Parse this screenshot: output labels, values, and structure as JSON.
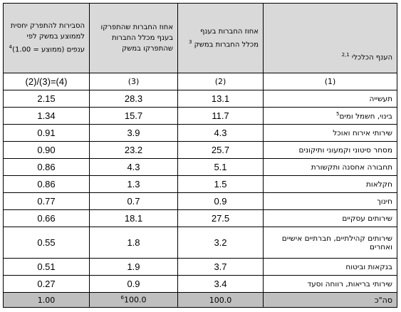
{
  "headers": {
    "sector": "הענף הכלכלי",
    "sector_sup": "2,1",
    "share_companies": "אחוז החברות בענף מכלל החברות במשק",
    "share_companies_sup": "3",
    "share_participants": "אחוז החברות שהתפרקו בענף מכלל החברות שהתפרקו במשק",
    "relative_prob": "הסבירות להתפרק יחסית לממוצע במשק לפי ענפים (ממוצע = 1.00)",
    "relative_prob_sup": "4"
  },
  "col_numbers": [
    "(1)",
    "(2)",
    "(3)",
    "(4)=(3)/(2)"
  ],
  "rows": [
    {
      "sector": "תעשייה",
      "pct_all": "13.1",
      "pct_dissolved": "28.3",
      "ratio": "2.15"
    },
    {
      "sector": "בינוי, חשמל ומים",
      "sector_sup": "5",
      "pct_all": "11.7",
      "pct_dissolved": "15.7",
      "ratio": "1.34"
    },
    {
      "sector": "שירותי אירוח ואוכל",
      "pct_all": "4.3",
      "pct_dissolved": "3.9",
      "ratio": "0.91"
    },
    {
      "sector": "מסחר סיטוני וקמעוני ותיקונים",
      "pct_all": "25.7",
      "pct_dissolved": "23.2",
      "ratio": "0.90"
    },
    {
      "sector": "תחבורה אחסנה ותקשורת",
      "pct_all": "5.1",
      "pct_dissolved": "4.3",
      "ratio": "0.86"
    },
    {
      "sector": "חקלאות",
      "pct_all": "1.5",
      "pct_dissolved": "1.3",
      "ratio": "0.86"
    },
    {
      "sector": "חינוך",
      "pct_all": "0.9",
      "pct_dissolved": "0.7",
      "ratio": "0.77"
    },
    {
      "sector": "שירותים עסקיים",
      "pct_all": "27.5",
      "pct_dissolved": "18.1",
      "ratio": "0.66"
    },
    {
      "sector": "שירותים קהילתיים, חברתיים אישיים ואחרים",
      "pct_all": "3.2",
      "pct_dissolved": "1.8",
      "ratio": "0.55"
    },
    {
      "sector": "בנקאות וביטוח",
      "pct_all": "3.7",
      "pct_dissolved": "1.9",
      "ratio": "0.51"
    },
    {
      "sector": "שירותי בריאות, רווחה וסעד",
      "pct_all": "3.4",
      "pct_dissolved": "0.9",
      "ratio": "0.27"
    }
  ],
  "total": {
    "sector": "סה\"כ",
    "pct_all": "100.0",
    "pct_dissolved": "100.0",
    "pct_dissolved_sup": "6",
    "ratio": "1.00"
  }
}
